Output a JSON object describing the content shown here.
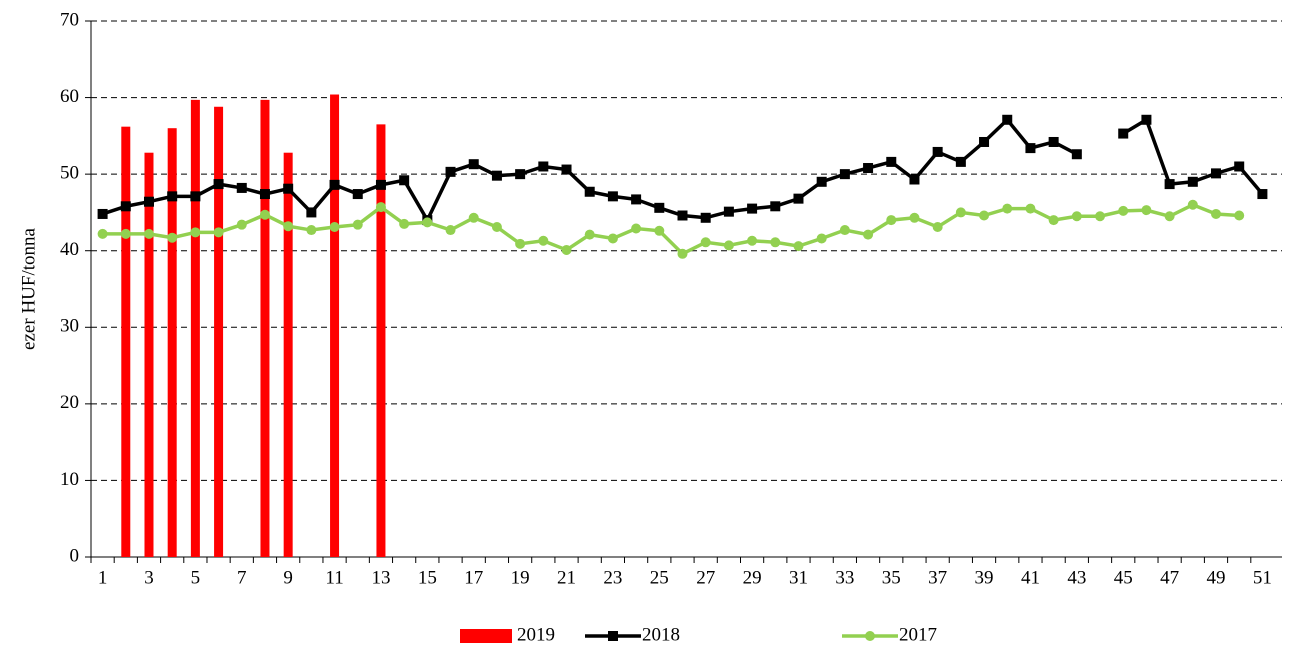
{
  "chart_data": {
    "type": "combo",
    "ylabel": "ezer HUF/tonna",
    "categories": [
      "1",
      null,
      "3",
      null,
      "5",
      null,
      "7",
      null,
      "9",
      null,
      "11",
      null,
      "13",
      null,
      "15",
      null,
      "17",
      null,
      "19",
      null,
      "21",
      null,
      "23",
      null,
      "25",
      null,
      "27",
      null,
      "29",
      null,
      "31",
      null,
      "33",
      null,
      "35",
      null,
      "37",
      null,
      "39",
      null,
      "41",
      null,
      "43",
      null,
      "45",
      null,
      "47",
      null,
      "49",
      null,
      "51"
    ],
    "ylim": [
      0,
      70
    ],
    "yticks": [
      0,
      10,
      20,
      30,
      40,
      50,
      60,
      70
    ],
    "grid": true,
    "legend": "bottom",
    "series": [
      {
        "name": "2019",
        "type": "bar",
        "color": "#ff0000",
        "values": [
          null,
          56.2,
          52.8,
          56.0,
          59.7,
          58.8,
          null,
          59.7,
          52.8,
          null,
          60.4,
          null,
          56.5,
          null,
          null,
          null,
          null,
          null,
          null,
          null,
          null,
          null,
          null,
          null,
          null,
          null,
          null,
          null,
          null,
          null,
          null,
          null,
          null,
          null,
          null,
          null,
          null,
          null,
          null,
          null,
          null,
          null,
          null,
          null,
          null,
          null,
          null,
          null,
          null,
          null,
          null
        ]
      },
      {
        "name": "2018",
        "type": "line",
        "marker": "square",
        "color": "#000000",
        "values": [
          44.8,
          45.8,
          46.4,
          47.1,
          47.1,
          48.7,
          48.2,
          47.4,
          48.1,
          45.0,
          48.6,
          47.4,
          48.6,
          49.2,
          44.0,
          50.3,
          51.3,
          49.8,
          50.0,
          51.0,
          50.6,
          47.7,
          47.1,
          46.7,
          45.6,
          44.6,
          44.3,
          45.1,
          45.5,
          45.8,
          46.8,
          49.0,
          50.0,
          50.8,
          51.6,
          49.3,
          52.9,
          51.6,
          54.2,
          57.1,
          53.4,
          54.2,
          52.6,
          null,
          55.3,
          57.1,
          48.7,
          49.0,
          50.1,
          51.0,
          47.4
        ]
      },
      {
        "name": "2017",
        "type": "line",
        "marker": "circle",
        "color": "#92d050",
        "values": [
          42.2,
          42.2,
          42.2,
          41.7,
          42.4,
          42.4,
          43.4,
          44.7,
          43.2,
          42.7,
          43.1,
          43.4,
          45.7,
          43.5,
          43.7,
          42.7,
          44.3,
          43.1,
          40.9,
          41.3,
          40.1,
          42.1,
          41.6,
          42.9,
          42.6,
          39.6,
          41.1,
          40.7,
          41.3,
          41.1,
          40.6,
          41.6,
          42.7,
          42.1,
          44.0,
          44.3,
          43.1,
          45.0,
          44.6,
          45.5,
          45.5,
          44.0,
          44.5,
          44.5,
          45.2,
          45.3,
          44.5,
          46.0,
          44.8,
          44.6,
          null
        ]
      }
    ]
  }
}
